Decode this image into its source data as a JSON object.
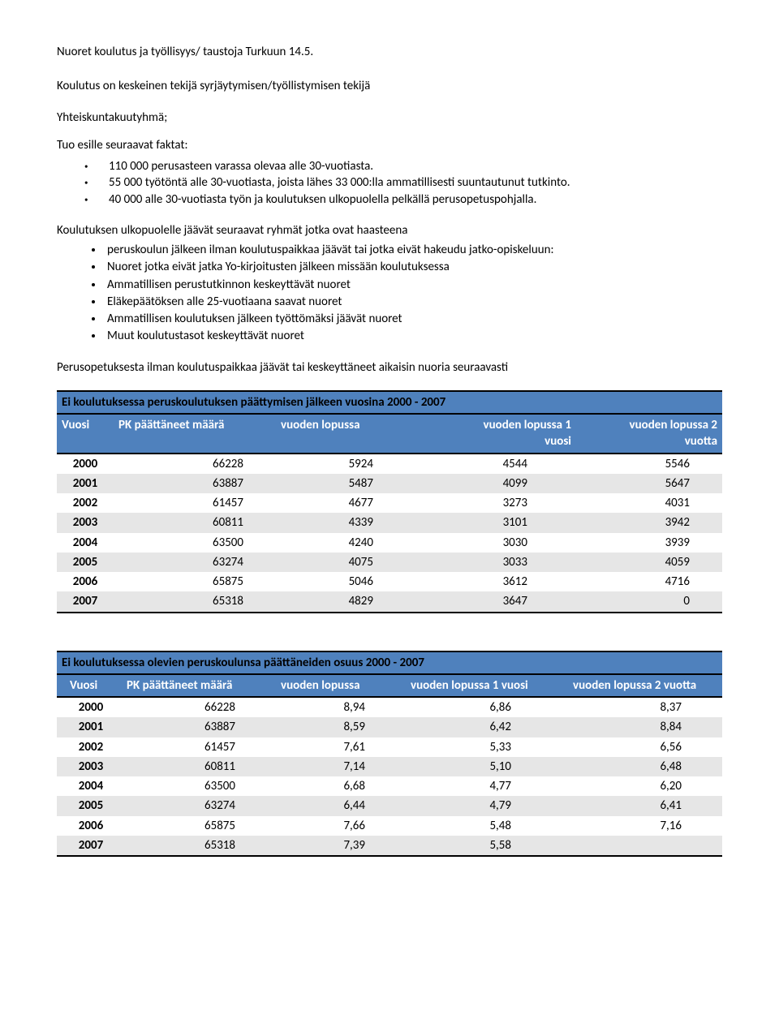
{
  "title": "Nuoret koulutus ja työllisyys/ taustoja Turkuun 14.5.",
  "p1": "Koulutus on keskeinen tekijä syrjäytymisen/työllistymisen tekijä",
  "p2": "Yhteiskuntakuutyhmä;",
  "p3": "Tuo esille seuraavat faktat:",
  "facts": [
    "110 000 perusasteen varassa olevaa alle 30-vuotiasta.",
    "55 000 työtöntä alle 30-vuotiasta, joista lähes 33 000:lla ammatillisesti suuntautunut tutkinto.",
    "40 000 alle 30-vuotiasta työn ja koulutuksen ulkopuolella pelkällä perusopetuspohjalla."
  ],
  "p4": "Koulutuksen ulkopuolelle jäävät seuraavat ryhmät jotka ovat haasteena",
  "groups": [
    "peruskoulun jälkeen ilman koulutuspaikkaa jäävät tai jotka eivät hakeudu jatko-opiskeluun:",
    "Nuoret jotka eivät jatka Yo-kirjoitusten jälkeen missään koulutuksessa",
    "Ammatillisen perustutkinnon keskeyttävät nuoret",
    "Eläkepäätöksen alle 25-vuotiaana saavat nuoret",
    "Ammatillisen koulutuksen jälkeen työttömäksi jäävät nuoret",
    "Muut koulutustasot keskeyttävät nuoret"
  ],
  "p5": "Perusopetuksesta ilman koulutuspaikkaa jäävät tai keskeyttäneet aikaisin nuoria seuraavasti",
  "table1": {
    "title": "Ei koulutuksessa peruskoulutuksen päättymisen jälkeen vuosina 2000 - 2007",
    "headers": {
      "year": "Vuosi",
      "a": "PK päättäneet määrä",
      "b": "vuoden lopussa",
      "c_l1": "vuoden lopussa 1",
      "c_l2": "vuosi",
      "d_l1": "vuoden lopussa 2",
      "d_l2": "vuotta"
    },
    "rows": [
      [
        "2000",
        "66228",
        "5924",
        "4544",
        "5546"
      ],
      [
        "2001",
        "63887",
        "5487",
        "4099",
        "5647"
      ],
      [
        "2002",
        "61457",
        "4677",
        "3273",
        "4031"
      ],
      [
        "2003",
        "60811",
        "4339",
        "3101",
        "3942"
      ],
      [
        "2004",
        "63500",
        "4240",
        "3030",
        "3939"
      ],
      [
        "2005",
        "63274",
        "4075",
        "3033",
        "4059"
      ],
      [
        "2006",
        "65875",
        "5046",
        "3612",
        "4716"
      ],
      [
        "2007",
        "65318",
        "4829",
        "3647",
        "0"
      ]
    ]
  },
  "table2": {
    "title": "Ei koulutuksessa olevien peruskoulunsa päättäneiden osuus 2000 - 2007",
    "headers": {
      "year": "Vuosi",
      "a": "PK päättäneet määrä",
      "b": "vuoden lopussa",
      "c": "vuoden lopussa 1 vuosi",
      "d": "vuoden lopussa 2 vuotta"
    },
    "rows": [
      [
        "2000",
        "66228",
        "8,94",
        "6,86",
        "8,37"
      ],
      [
        "2001",
        "63887",
        "8,59",
        "6,42",
        "8,84"
      ],
      [
        "2002",
        "61457",
        "7,61",
        "5,33",
        "6,56"
      ],
      [
        "2003",
        "60811",
        "7,14",
        "5,10",
        "6,48"
      ],
      [
        "2004",
        "63500",
        "6,68",
        "4,77",
        "6,20"
      ],
      [
        "2005",
        "63274",
        "6,44",
        "4,79",
        "6,41"
      ],
      [
        "2006",
        "65875",
        "7,66",
        "5,48",
        "7,16"
      ],
      [
        "2007",
        "65318",
        "7,39",
        "5,58",
        ""
      ]
    ]
  },
  "colors": {
    "header_bg": "#4f81bd",
    "header_text": "#ffffff",
    "row_even_bg": "#e6e6e6",
    "row_odd_bg": "#ffffff",
    "border": "#000000"
  }
}
